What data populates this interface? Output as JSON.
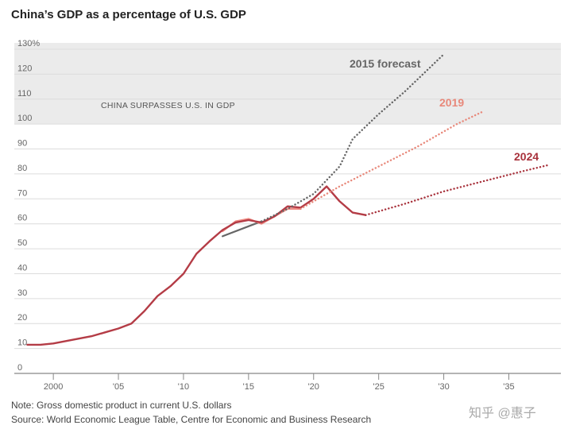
{
  "chart_data": {
    "type": "line",
    "title": "China’s GDP as a percentage of U.S. GDP",
    "ylim": [
      0,
      130
    ],
    "xlim": [
      1997,
      2039
    ],
    "yticks": [
      0,
      10,
      20,
      30,
      40,
      50,
      60,
      70,
      80,
      90,
      100,
      110,
      120,
      130
    ],
    "ytick_labels": [
      "0",
      "10",
      "20",
      "30",
      "40",
      "50",
      "60",
      "70",
      "80",
      "90",
      "100",
      "110",
      "120",
      "130%"
    ],
    "xticks": [
      2000,
      2005,
      2010,
      2015,
      2020,
      2025,
      2030,
      2035
    ],
    "xtick_labels": [
      "2000",
      "'05",
      "'10",
      "'15",
      "'20",
      "'25",
      "'30",
      "'35"
    ],
    "shaded_region": {
      "from": 100,
      "to": 130,
      "label": "CHINA SURPASSES U.S. IN GDP"
    },
    "grid": true,
    "colors": {
      "forecast_2015": "#666666",
      "forecast_2019": "#e8887a",
      "forecast_2024": "#a8323c",
      "shade": "#ebebeb"
    },
    "series": [
      {
        "name": "",
        "style": "solid",
        "color": "#666666",
        "x": [
          2013,
          2015,
          2016
        ],
        "y": [
          55,
          59,
          61
        ]
      },
      {
        "name": "",
        "style": "solid",
        "color": "#f08c84",
        "x": [
          2013,
          2014,
          2015,
          2016,
          2017,
          2018,
          2019
        ],
        "y": [
          57,
          61,
          62,
          60,
          63,
          66,
          66
        ]
      },
      {
        "name": "",
        "style": "solid",
        "color": "#b43c46",
        "x": [
          1998,
          1999,
          2000,
          2001,
          2002,
          2003,
          2004,
          2005,
          2006,
          2007,
          2008,
          2009,
          2010,
          2011,
          2012,
          2013,
          2014,
          2015,
          2016,
          2017,
          2018,
          2019,
          2020,
          2021,
          2022,
          2023,
          2024
        ],
        "y": [
          11.5,
          11.5,
          12,
          13,
          14,
          15,
          16.5,
          18,
          20,
          25,
          31,
          35,
          40,
          48,
          53,
          57.5,
          60.5,
          61.5,
          60.5,
          63,
          67,
          66.5,
          70,
          75,
          69,
          64.5,
          63.5
        ]
      },
      {
        "name": "2015 forecast",
        "style": "dotted",
        "color": "#666666",
        "x": [
          2016,
          2018,
          2020,
          2022,
          2023,
          2025,
          2027,
          2030
        ],
        "y": [
          61,
          66,
          72,
          83,
          94,
          104,
          113,
          128
        ]
      },
      {
        "name": "2019",
        "style": "dotted",
        "color": "#e8887a",
        "x": [
          2019,
          2022,
          2025,
          2028,
          2031,
          2033
        ],
        "y": [
          66,
          75,
          83,
          91,
          100,
          105
        ]
      },
      {
        "name": "2024",
        "style": "dotted",
        "color": "#a8323c",
        "x": [
          2024,
          2027,
          2030,
          2033,
          2036,
          2038
        ],
        "y": [
          63.5,
          68,
          73,
          77,
          81,
          83.5
        ]
      }
    ]
  },
  "notes": {
    "line1": "Note: Gross domestic product in current U.S. dollars",
    "line2": "Source: World Economic League Table, Centre for Economic and Business Research"
  },
  "watermark": "知乎 @惠子"
}
